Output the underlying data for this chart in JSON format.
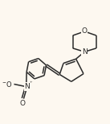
{
  "bg_color": "#fdf8f0",
  "line_color": "#2a2a2a",
  "line_width": 1.1,
  "figsize": [
    1.37,
    1.54
  ],
  "dpi": 100,
  "xlim": [
    0.0,
    1.0
  ],
  "ylim": [
    0.0,
    1.0
  ]
}
